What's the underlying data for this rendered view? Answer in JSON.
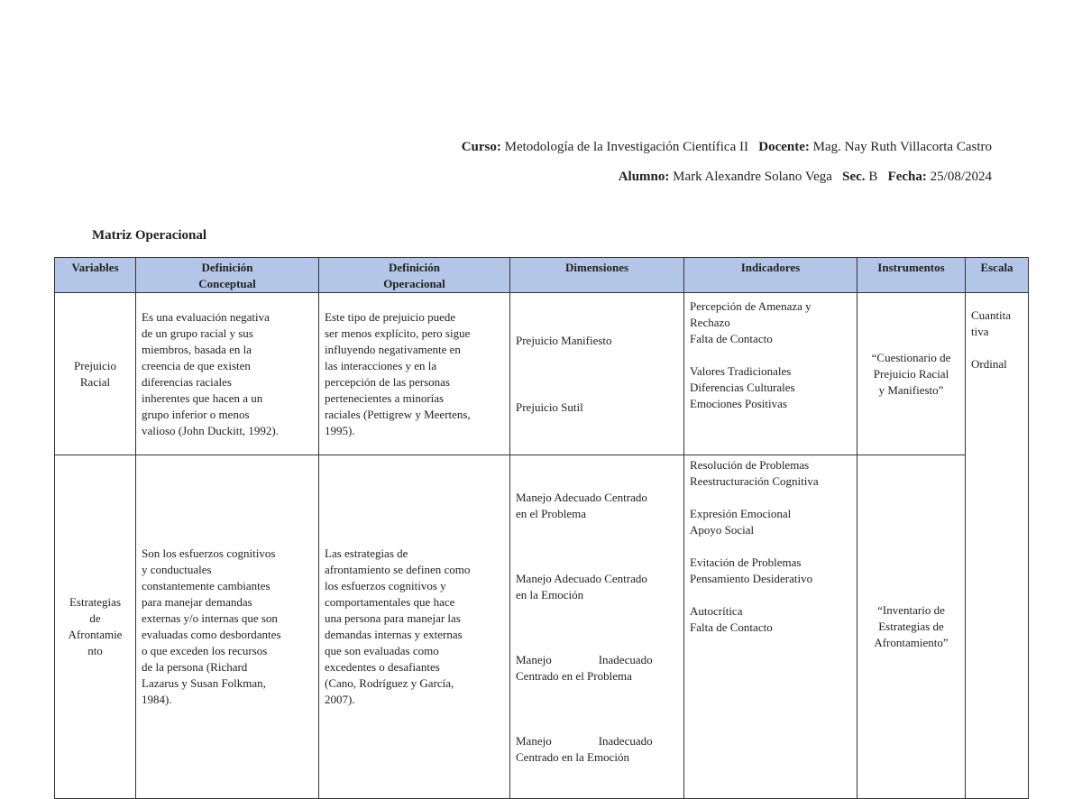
{
  "header": {
    "curso_label": "Curso:",
    "curso": "Metodología de la Investigación Científica II",
    "docente_label": "Docente:",
    "docente": "Mag. Nay Ruth Villacorta Castro",
    "alumno_label": "Alumno:",
    "alumno": "Mark Alexandre Solano Vega",
    "sec_label": "Sec.",
    "sec": "B",
    "fecha_label": "Fecha:",
    "fecha": "25/08/2024"
  },
  "title": "Matriz Operacional",
  "table": {
    "columns": [
      "Variables",
      "Definición\nConceptual",
      "Definición\nOperacional",
      "Dimensiones",
      "Indicadores",
      "Instrumentos",
      "Escala"
    ],
    "rows": [
      {
        "variable": "Prejuicio\nRacial",
        "conceptual": "Es una evaluación negativa\nde un grupo racial y sus\nmiembros, basada en la\ncreencia de que existen\ndiferencias raciales\ninherentes que hacen a un\ngrupo inferior o menos\nvalioso (John Duckitt, 1992).",
        "operacional": "Este tipo de prejuicio puede\nser menos explícito, pero sigue\ninfluyendo negativamente en\nlas interacciones y en la\npercepción de las personas\npertenecientes a minorías\nraciales (Pettigrew y Meertens,\n1995).",
        "dimensiones": [
          "Prejuicio Manifiesto",
          "Prejuicio Sutil"
        ],
        "indicadores": [
          "Percepción de Amenaza y\nRechazo\nFalta de Contacto",
          "Valores Tradicionales\nDiferencias Culturales\nEmociones Positivas"
        ],
        "instrumento": "“Cuestionario de\nPrejuicio Racial\ny Manifiesto”",
        "escala": "Cuantita\ntiva\n\nOrdinal"
      },
      {
        "variable": "Estrategias\nde\nAfrontamie\nnto",
        "conceptual": "Son los esfuerzos cognitivos\ny conductuales\nconstantemente cambiantes\npara manejar demandas\nexternas y/o internas que son\nevaluadas como desbordantes\no que exceden los recursos\nde la persona (Richard\nLazarus y Susan Folkman,\n1984).",
        "operacional": "Las estrategias de\nafrontamiento se definen como\nlos esfuerzos cognitivos y\ncomportamentales que hace\nuna persona para manejar las\ndemandas internas y externas\nque son evaluadas como\nexcedentes o desafiantes\n(Cano, Rodríguez y García,\n2007).",
        "dimensiones": [
          "Manejo Adecuado Centrado\nen el Problema",
          "Manejo Adecuado Centrado\nen la Emoción",
          "Manejo                Inadecuado\nCentrado en el Problema",
          "Manejo                Inadecuado\nCentrado en la Emoción"
        ],
        "indicadores": [
          "Resolución de Problemas\nReestructuración Cognitiva",
          "Expresión Emocional\nApoyo Social",
          "Evitación de Problemas\nPensamiento Desiderativo",
          "Autocrítica\nFalta de Contacto"
        ],
        "instrumento": "“Inventario de\nEstrategias de\nAfrontamiento”"
      }
    ]
  }
}
